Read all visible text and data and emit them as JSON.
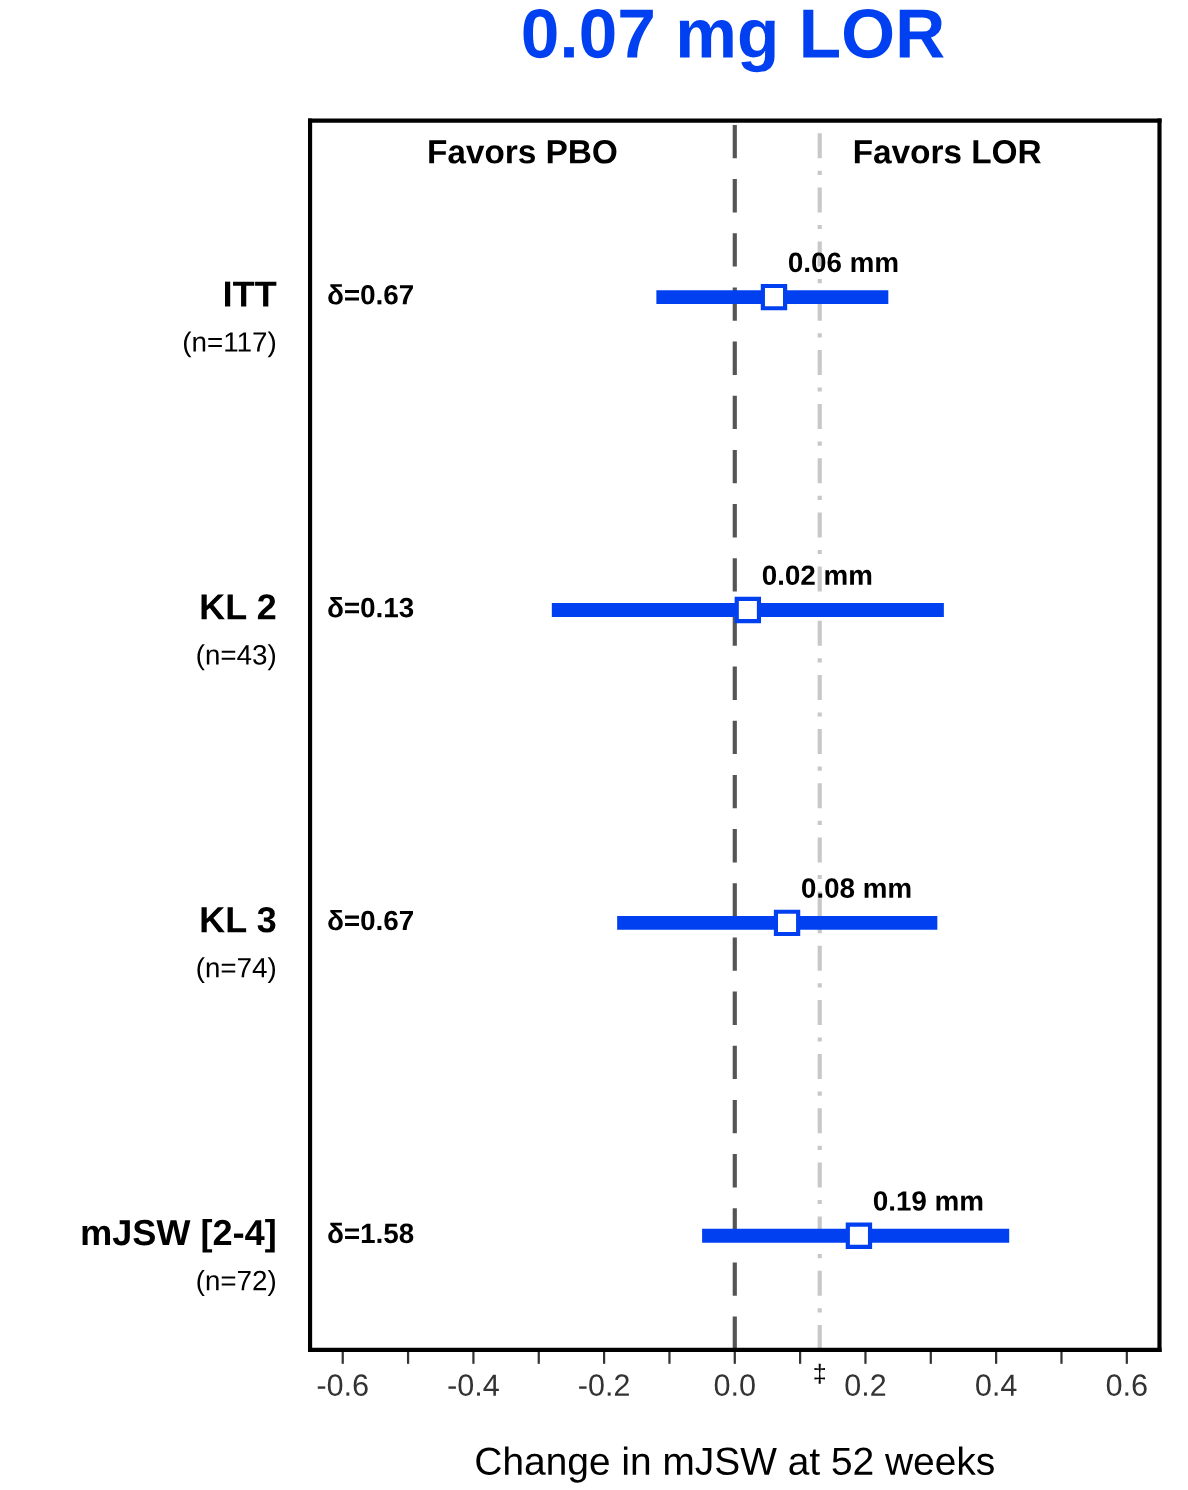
{
  "chart_data": {
    "type": "scatter",
    "orientation": "horizontal",
    "title": "0.07 mg LOR",
    "xlabel": "Change in mJSW at 52 weeks",
    "categories": [
      "ITT\n(n=117)",
      "KL 2\n(n=43)",
      "KL 3\n(n=74)",
      "mJSW [2-4]\n(n=72)"
    ],
    "series": [
      {
        "color": "#0040f0",
        "values": [
          0.06,
          0.02,
          0.08,
          0.19
        ],
        "errors": [
          [
            -0.12,
            0.235
          ],
          [
            -0.28,
            0.32
          ],
          [
            -0.18,
            0.31
          ],
          [
            -0.05,
            0.42
          ]
        ],
        "value_labels": [
          "0.06 mm",
          "0.02 mm",
          "0.08 mm",
          "0.19 mm"
        ]
      }
    ],
    "marker": "square",
    "xlim": [
      -0.65,
      0.65
    ],
    "xticks": [
      -0.6,
      {
        "value": -0.5,
        "label": null
      },
      -0.4,
      {
        "value": -0.3,
        "label": null
      },
      -0.2,
      {
        "value": -0.1,
        "label": null
      },
      {
        "value": 0,
        "label": "0.0"
      },
      {
        "value": 0.1,
        "label": null
      },
      0.2,
      {
        "value": 0.3,
        "label": null
      },
      0.4,
      {
        "value": 0.5,
        "label": null
      },
      0.6
    ],
    "ref_lines": [
      {
        "axis": "x",
        "value": 0,
        "color": "#555555",
        "line_style": "dashed"
      },
      {
        "axis": "x",
        "value": 0.13,
        "color": "#c8c8c8",
        "line_style": "dashdot"
      }
    ],
    "annotations": [
      "Favors PBO",
      "Favors LOR",
      "‡",
      "δ=0.67",
      "δ=0.13",
      "δ=0.67",
      "δ=1.58"
    ],
    "grid": false,
    "legend": false
  }
}
